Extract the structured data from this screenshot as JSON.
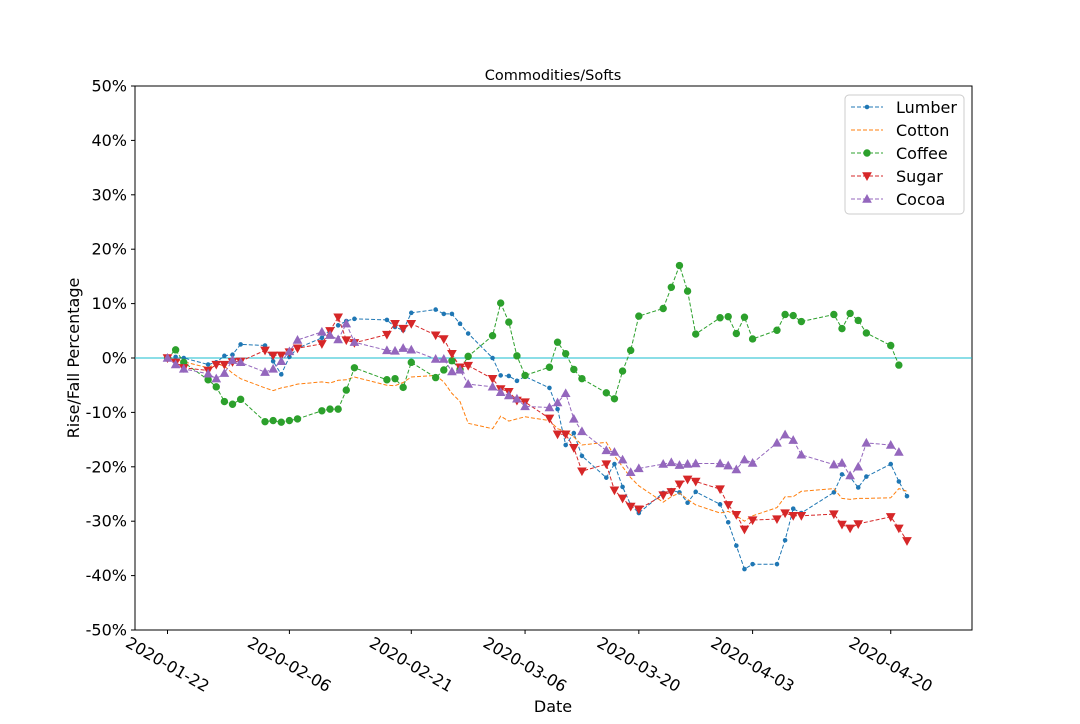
{
  "chart_data": {
    "type": "line",
    "title": "Commodities/Softs",
    "xlabel": "Date",
    "ylabel": "Rise/Fall Percentage",
    "y_unit": "%",
    "ylim": [
      -50,
      50
    ],
    "y_ticks": [
      -50,
      -40,
      -30,
      -20,
      -10,
      0,
      10,
      20,
      30,
      40,
      50
    ],
    "y_tick_labels": [
      "-50%",
      "-40%",
      "-30%",
      "-20%",
      "-10%",
      "0%",
      "10%",
      "20%",
      "30%",
      "40%",
      "50%"
    ],
    "xlim": [
      "2020-01-18",
      "2020-04-30"
    ],
    "x_ticks": [
      "2020-01-22",
      "2020-02-06",
      "2020-02-21",
      "2020-03-06",
      "2020-03-20",
      "2020-04-03",
      "2020-04-20"
    ],
    "x_tick_labels": [
      "2020-01-22",
      "2020-02-06",
      "2020-02-21",
      "2020-03-06",
      "2020-03-20",
      "2020-04-03",
      "2020-04-20"
    ],
    "reference_line": {
      "y": 0,
      "color": "#17becf"
    },
    "grid": false,
    "legend_position": "top-right",
    "x": [
      "2020-01-22",
      "2020-01-23",
      "2020-01-24",
      "2020-01-27",
      "2020-01-28",
      "2020-01-29",
      "2020-01-30",
      "2020-01-31",
      "2020-02-03",
      "2020-02-04",
      "2020-02-05",
      "2020-02-06",
      "2020-02-07",
      "2020-02-10",
      "2020-02-11",
      "2020-02-12",
      "2020-02-13",
      "2020-02-14",
      "2020-02-18",
      "2020-02-19",
      "2020-02-20",
      "2020-02-21",
      "2020-02-24",
      "2020-02-25",
      "2020-02-26",
      "2020-02-27",
      "2020-02-28",
      "2020-03-02",
      "2020-03-03",
      "2020-03-04",
      "2020-03-05",
      "2020-03-06",
      "2020-03-09",
      "2020-03-10",
      "2020-03-11",
      "2020-03-12",
      "2020-03-13",
      "2020-03-16",
      "2020-03-17",
      "2020-03-18",
      "2020-03-19",
      "2020-03-20",
      "2020-03-23",
      "2020-03-24",
      "2020-03-25",
      "2020-03-26",
      "2020-03-27",
      "2020-03-30",
      "2020-03-31",
      "2020-04-01",
      "2020-04-02",
      "2020-04-03",
      "2020-04-06",
      "2020-04-07",
      "2020-04-08",
      "2020-04-09",
      "2020-04-13",
      "2020-04-14",
      "2020-04-15",
      "2020-04-16",
      "2020-04-17",
      "2020-04-20",
      "2020-04-21",
      "2020-04-22",
      "2020-04-23"
    ],
    "series": [
      {
        "name": "Lumber",
        "color": "#1f77b4",
        "marker": "point",
        "values": [
          0.0,
          0.2,
          0.0,
          -1.2,
          -0.8,
          0.4,
          0.6,
          2.5,
          2.3,
          -0.6,
          -3.0,
          0.2,
          1.8,
          3.7,
          5.2,
          6.0,
          6.8,
          7.2,
          7.0,
          5.7,
          5.1,
          8.3,
          8.9,
          8.1,
          8.1,
          6.3,
          4.5,
          0.0,
          -3.2,
          -3.3,
          -4.2,
          -3.4,
          -5.5,
          -9.4,
          -16.0,
          -13.8,
          -18.0,
          -22.0,
          -19.5,
          -23.7,
          -27.0,
          -28.5,
          -24.8,
          -24.3,
          -24.7,
          -26.6,
          -24.6,
          -26.9,
          -30.2,
          -34.5,
          -38.8,
          -37.9,
          -37.9,
          -33.5,
          -27.7,
          -28.5,
          -24.7,
          -21.4,
          -21.9,
          -23.8,
          -21.8,
          -19.5,
          -22.7,
          -25.4,
          null
        ]
      },
      {
        "name": "Cotton",
        "color": "#ff7f0e",
        "marker": "none",
        "values": [
          0.0,
          -0.3,
          -0.7,
          -1.8,
          -1.0,
          -1.5,
          -2.8,
          -3.8,
          -5.5,
          -6.0,
          -5.5,
          -5.2,
          -4.8,
          -4.4,
          -4.6,
          -4.1,
          -4.0,
          -3.5,
          -5.0,
          -5.1,
          -4.5,
          -3.5,
          -3.2,
          -4.4,
          -6.5,
          -8.0,
          -12.0,
          -13.0,
          -10.7,
          -11.6,
          -11.2,
          -10.8,
          -11.5,
          -13.0,
          -13.5,
          -14.5,
          -16.0,
          -15.5,
          -18.0,
          -20.0,
          -22.0,
          -23.5,
          -26.5,
          -25.5,
          -24.8,
          -26.0,
          -27.0,
          -28.5,
          -28.2,
          -29.0,
          -30.0,
          -29.0,
          -27.5,
          -25.5,
          -25.5,
          -24.5,
          -24.0,
          -25.8,
          -26.0,
          -25.8,
          -25.8,
          -25.7,
          -24.0,
          -24.5,
          null
        ]
      },
      {
        "name": "Coffee",
        "color": "#2ca02c",
        "marker": "circle",
        "values": [
          0.0,
          1.5,
          -0.8,
          -4.0,
          -5.3,
          -8.0,
          -8.5,
          -7.6,
          -11.7,
          -11.5,
          -11.8,
          -11.5,
          -11.2,
          -9.7,
          -9.4,
          -9.4,
          -5.9,
          -1.8,
          -4.0,
          -3.8,
          -5.4,
          -0.8,
          -3.6,
          -2.2,
          -0.5,
          -2.1,
          0.3,
          4.1,
          10.1,
          6.6,
          0.4,
          -3.2,
          -1.7,
          2.9,
          0.8,
          -2.1,
          -3.8,
          -6.4,
          -7.5,
          -2.4,
          1.4,
          7.7,
          9.1,
          13.0,
          17.0,
          12.3,
          4.4,
          7.4,
          7.6,
          4.5,
          7.5,
          3.5,
          5.1,
          8.0,
          7.8,
          6.7,
          8.0,
          5.4,
          8.2,
          6.9,
          4.6,
          2.3,
          -1.3,
          null,
          null
        ]
      },
      {
        "name": "Sugar",
        "color": "#d62728",
        "marker": "triangle-down",
        "values": [
          0.0,
          -0.8,
          -1.8,
          -2.3,
          -1.2,
          -1.2,
          -0.7,
          -0.6,
          1.4,
          0.5,
          0.5,
          1.1,
          1.8,
          2.6,
          5.0,
          7.5,
          3.3,
          2.8,
          4.3,
          6.3,
          5.4,
          6.3,
          4.2,
          3.5,
          0.8,
          -1.7,
          -1.4,
          -3.8,
          -5.7,
          -6.2,
          -7.8,
          -8.1,
          -11.1,
          -14.0,
          -14.0,
          -16.5,
          -20.8,
          -19.5,
          -24.3,
          -25.8,
          -27.3,
          -27.8,
          -25.2,
          -24.6,
          -23.2,
          -22.3,
          -22.7,
          -24.1,
          -27.0,
          -28.8,
          -31.5,
          -29.8,
          -29.6,
          -28.5,
          -29.0,
          -29.0,
          -28.7,
          -30.6,
          -31.3,
          -30.5,
          null,
          -29.2,
          -31.3,
          -33.6,
          null
        ]
      },
      {
        "name": "Cocoa",
        "color": "#9467bd",
        "marker": "triangle-up",
        "values": [
          0.0,
          -1.2,
          -2.0,
          -2.9,
          -3.8,
          -2.8,
          -0.4,
          -0.8,
          -2.6,
          -2.0,
          -0.6,
          1.2,
          3.3,
          4.8,
          4.2,
          3.4,
          6.3,
          2.9,
          1.4,
          1.3,
          1.8,
          1.5,
          -0.2,
          -0.2,
          -2.5,
          -2.2,
          -4.8,
          -5.3,
          -6.3,
          -6.9,
          -7.5,
          -8.9,
          -9.1,
          -8.2,
          -6.5,
          -11.2,
          -13.5,
          -17.0,
          -17.3,
          -18.7,
          -21.0,
          -20.3,
          -19.5,
          -19.2,
          -19.7,
          -19.5,
          -19.4,
          -19.4,
          -19.8,
          -20.5,
          -18.7,
          -19.3,
          -15.6,
          -14.1,
          -15.1,
          -17.8,
          -19.6,
          -19.3,
          -21.6,
          -20.0,
          -15.6,
          -16.0,
          -17.3,
          null,
          null
        ]
      }
    ]
  }
}
